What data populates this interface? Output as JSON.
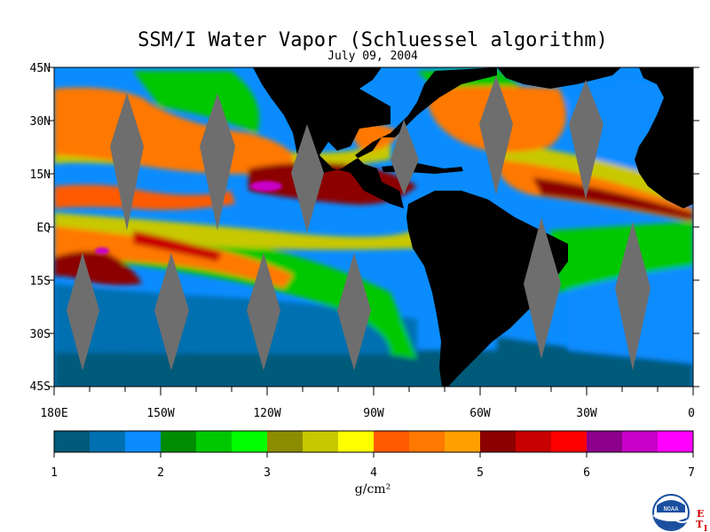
{
  "title": "SSM/I Water Vapor (Schluessel algorithm)",
  "subtitle": "July 09, 2004",
  "lat_labels": [
    "45N",
    "30N",
    "15N",
    "EQ",
    "15S",
    "30S",
    "45S"
  ],
  "lon_labels": [
    "180E",
    "150W",
    "120W",
    "90W",
    "60W",
    "30W",
    "0"
  ],
  "colorbar": {
    "unit": "g/cm²",
    "tick_labels": [
      "1",
      "2",
      "3",
      "4",
      "5",
      "6",
      "7"
    ],
    "colors": [
      "#005a7a",
      "#0070b0",
      "#0a8cff",
      "#008c00",
      "#00c800",
      "#00ff00",
      "#8c8c00",
      "#c8c800",
      "#ffff00",
      "#ff5a00",
      "#ff7800",
      "#ffa000",
      "#8c0000",
      "#c80000",
      "#ff0000",
      "#8c008c",
      "#c800c8",
      "#ff00ff"
    ]
  },
  "map_colors": {
    "land": "#000000",
    "no_data": "#6e6e6e",
    "ocean_low": "#0a8cff",
    "ocean_deep": "#005a7a"
  },
  "logo": {
    "text": "NOAA",
    "side_letters": [
      "E",
      "T",
      "I"
    ]
  }
}
